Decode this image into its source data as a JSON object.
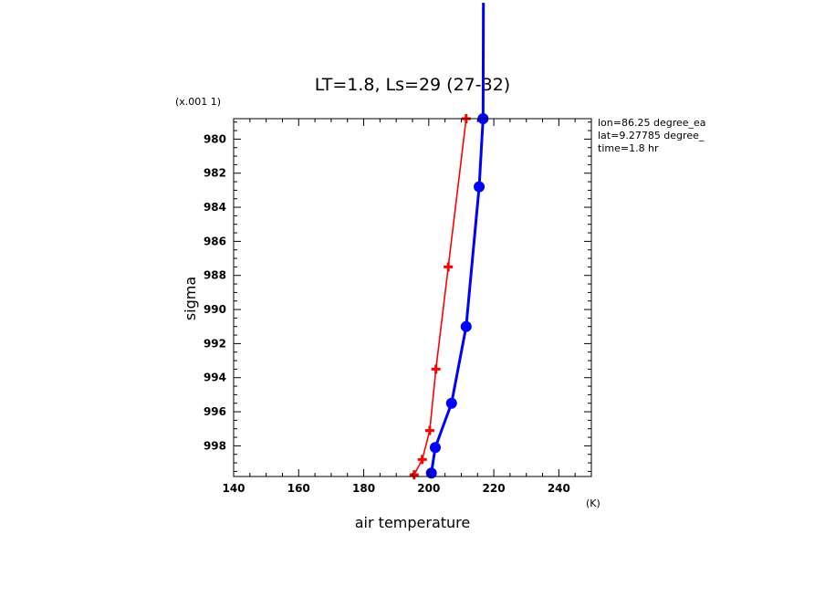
{
  "chart_data": {
    "type": "line",
    "title": "LT=1.8, Ls=29 (27-32)",
    "xlabel": "air temperature",
    "ylabel": "sigma",
    "x_unit": "(K)",
    "y_scale_note": "(x.001 1)",
    "xlim": [
      140,
      250
    ],
    "ylim": [
      999.8,
      978.8
    ],
    "y_direction": "down-increasing",
    "x_ticks": [
      140,
      160,
      180,
      200,
      220,
      240
    ],
    "y_ticks": [
      980,
      982,
      984,
      986,
      988,
      990,
      992,
      994,
      996,
      998
    ],
    "annotations": [
      "lon=86.25 degree_ea",
      "lat=9.27785 degree_",
      "time=1.8 hr"
    ],
    "grid": false,
    "series": [
      {
        "color": "#ff0000",
        "marker": "plus",
        "x": [
          195.5,
          198.0,
          200.3,
          202.2,
          206.0,
          211.5
        ],
        "y": [
          999.7,
          998.8,
          997.1,
          993.5,
          987.5,
          978.8
        ]
      },
      {
        "color": "#0000ff",
        "marker": "circle",
        "x": [
          200.8,
          202.0,
          207.0,
          211.5,
          215.5,
          216.7,
          216.8
        ],
        "y": [
          999.6,
          998.1,
          995.5,
          991.0,
          982.8,
          978.8,
          972.0
        ]
      }
    ]
  }
}
